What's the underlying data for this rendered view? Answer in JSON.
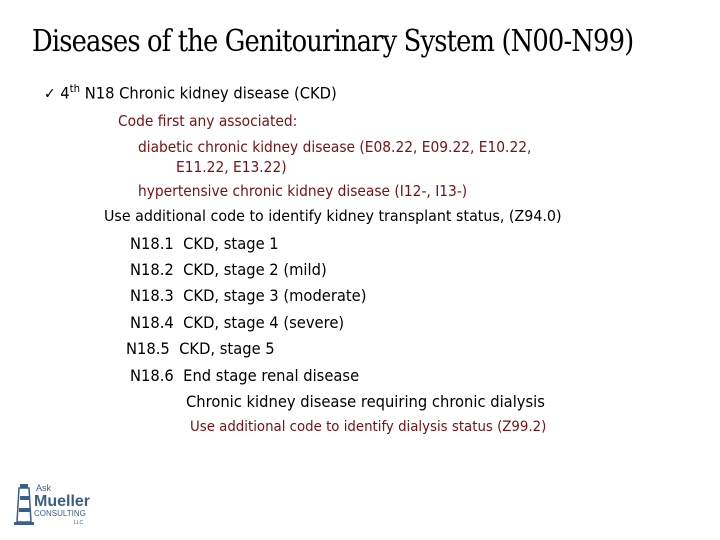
{
  "title": "Diseases of the Genitourinary System (N00-N99)",
  "bullet": {
    "check_icon": "checkmark-icon",
    "ordinal": "4",
    "ordinal_suffix": "th",
    "text": "N18 Chronic kidney disease (CKD)"
  },
  "code_first": {
    "label": "Code first any associated:",
    "items": [
      "diabetic chronic kidney disease (E08.22, E09.22, E10.22,",
      "E11.22, E13.22)",
      "hypertensive chronic kidney disease (I12-, I13-)"
    ]
  },
  "use_additional": "Use additional code to identify kidney transplant status, (Z94.0)",
  "codes": [
    {
      "code": "N18.1",
      "desc": "CKD, stage 1"
    },
    {
      "code": "N18.2",
      "desc": "CKD, stage 2 (mild)"
    },
    {
      "code": "N18.3",
      "desc": "CKD, stage 3 (moderate)"
    },
    {
      "code": "N18.4",
      "desc": "CKD, stage 4 (severe)"
    },
    {
      "code": "N18.5",
      "desc": "CKD, stage 5"
    },
    {
      "code": "N18.6",
      "desc": "End stage renal disease"
    }
  ],
  "n186_inclusion": "Chronic kidney disease requiring chronic dialysis",
  "n186_use_additional": "Use additional code to identify dialysis status (Z99.2)",
  "logo": {
    "ask": "Ask",
    "name": "Mueller",
    "consulting": "CONSULTING",
    "llc": "LLC"
  },
  "colors": {
    "text": "#000000",
    "red": "#7a1010",
    "logo_blue": "#3a5f8a"
  }
}
